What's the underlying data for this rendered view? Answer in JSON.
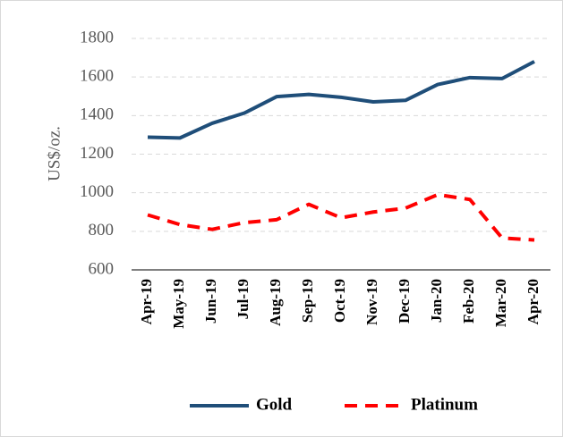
{
  "chart_data": {
    "type": "line",
    "y_label": "US$/oz.",
    "categories": [
      "Apr-19",
      "May-19",
      "Jun-19",
      "Jul-19",
      "Aug-19",
      "Sep-19",
      "Oct-19",
      "Nov-19",
      "Dec-19",
      "Jan-20",
      "Feb-20",
      "Mar-20",
      "Apr-20"
    ],
    "series": [
      {
        "name": "Gold",
        "color": "#1f4e79",
        "dash": false,
        "values": [
          1288,
          1284,
          1360,
          1413,
          1498,
          1510,
          1495,
          1471,
          1479,
          1561,
          1597,
          1592,
          1680
        ]
      },
      {
        "name": "Platinum",
        "color": "#ff0000",
        "dash": true,
        "values": [
          885,
          835,
          810,
          845,
          860,
          940,
          870,
          900,
          920,
          990,
          965,
          765,
          755
        ]
      }
    ],
    "ylim": [
      600,
      1800
    ],
    "yticks": [
      600,
      800,
      1000,
      1200,
      1400,
      1600,
      1800
    ],
    "grid": true,
    "legend": "bottom"
  }
}
